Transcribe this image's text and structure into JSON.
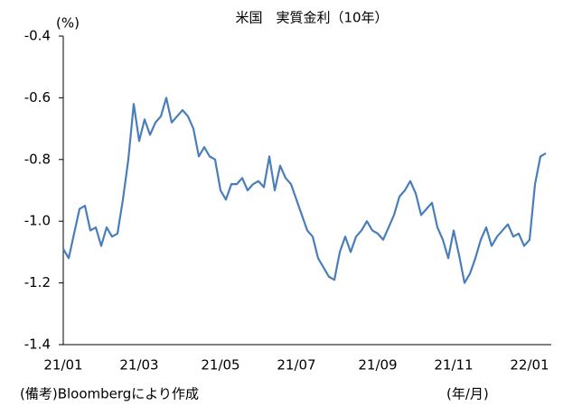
{
  "chart_data": {
    "type": "line",
    "title": "米国　実質金利（10年）",
    "y_unit": "(%)",
    "note": "(備考)Bloombergにより作成",
    "x_unit": "(年/月)",
    "categories": [
      "21/01",
      null,
      null,
      null,
      null,
      null,
      null,
      null,
      null,
      null,
      null,
      null,
      null,
      null,
      "21/03",
      null,
      null,
      null,
      null,
      null,
      null,
      null,
      null,
      null,
      null,
      null,
      null,
      null,
      null,
      "21/05",
      null,
      null,
      null,
      null,
      null,
      null,
      null,
      null,
      null,
      null,
      null,
      null,
      null,
      "21/07",
      null,
      null,
      null,
      null,
      null,
      null,
      null,
      null,
      null,
      null,
      null,
      null,
      null,
      null,
      "21/09",
      null,
      null,
      null,
      null,
      null,
      null,
      null,
      null,
      null,
      null,
      null,
      null,
      null,
      "21/11",
      null,
      null,
      null,
      null,
      null,
      null,
      null,
      null,
      null,
      null,
      null,
      null,
      null,
      "22/01",
      null,
      null,
      null
    ],
    "series": [
      {
        "color": "#4a7ebb",
        "values": [
          -1.09,
          -1.12,
          -1.04,
          -0.96,
          -0.95,
          -1.03,
          -1.02,
          -1.08,
          -1.02,
          -1.05,
          -1.04,
          -0.93,
          -0.8,
          -0.62,
          -0.74,
          -0.67,
          -0.72,
          -0.68,
          -0.66,
          -0.6,
          -0.68,
          -0.66,
          -0.64,
          -0.66,
          -0.7,
          -0.79,
          -0.76,
          -0.79,
          -0.8,
          -0.9,
          -0.93,
          -0.88,
          -0.88,
          -0.86,
          -0.9,
          -0.88,
          -0.87,
          -0.89,
          -0.79,
          -0.9,
          -0.82,
          -0.86,
          -0.88,
          -0.93,
          -0.98,
          -1.03,
          -1.05,
          -1.12,
          -1.15,
          -1.18,
          -1.19,
          -1.1,
          -1.05,
          -1.1,
          -1.05,
          -1.03,
          -1.0,
          -1.03,
          -1.04,
          -1.06,
          -1.02,
          -0.98,
          -0.92,
          -0.9,
          -0.87,
          -0.91,
          -0.98,
          -0.96,
          -0.94,
          -1.02,
          -1.06,
          -1.12,
          -1.03,
          -1.11,
          -1.2,
          -1.17,
          -1.12,
          -1.06,
          -1.02,
          -1.08,
          -1.05,
          -1.03,
          -1.01,
          -1.05,
          -1.04,
          -1.08,
          -1.06,
          -0.88,
          -0.79,
          -0.78
        ]
      }
    ],
    "ylim": [
      -1.4,
      -0.4
    ],
    "yticks": [
      -0.4,
      -0.6,
      -0.8,
      {
        "value": -1,
        "label": "-1.0"
      },
      -1.2,
      -1.4
    ],
    "grid": false
  }
}
